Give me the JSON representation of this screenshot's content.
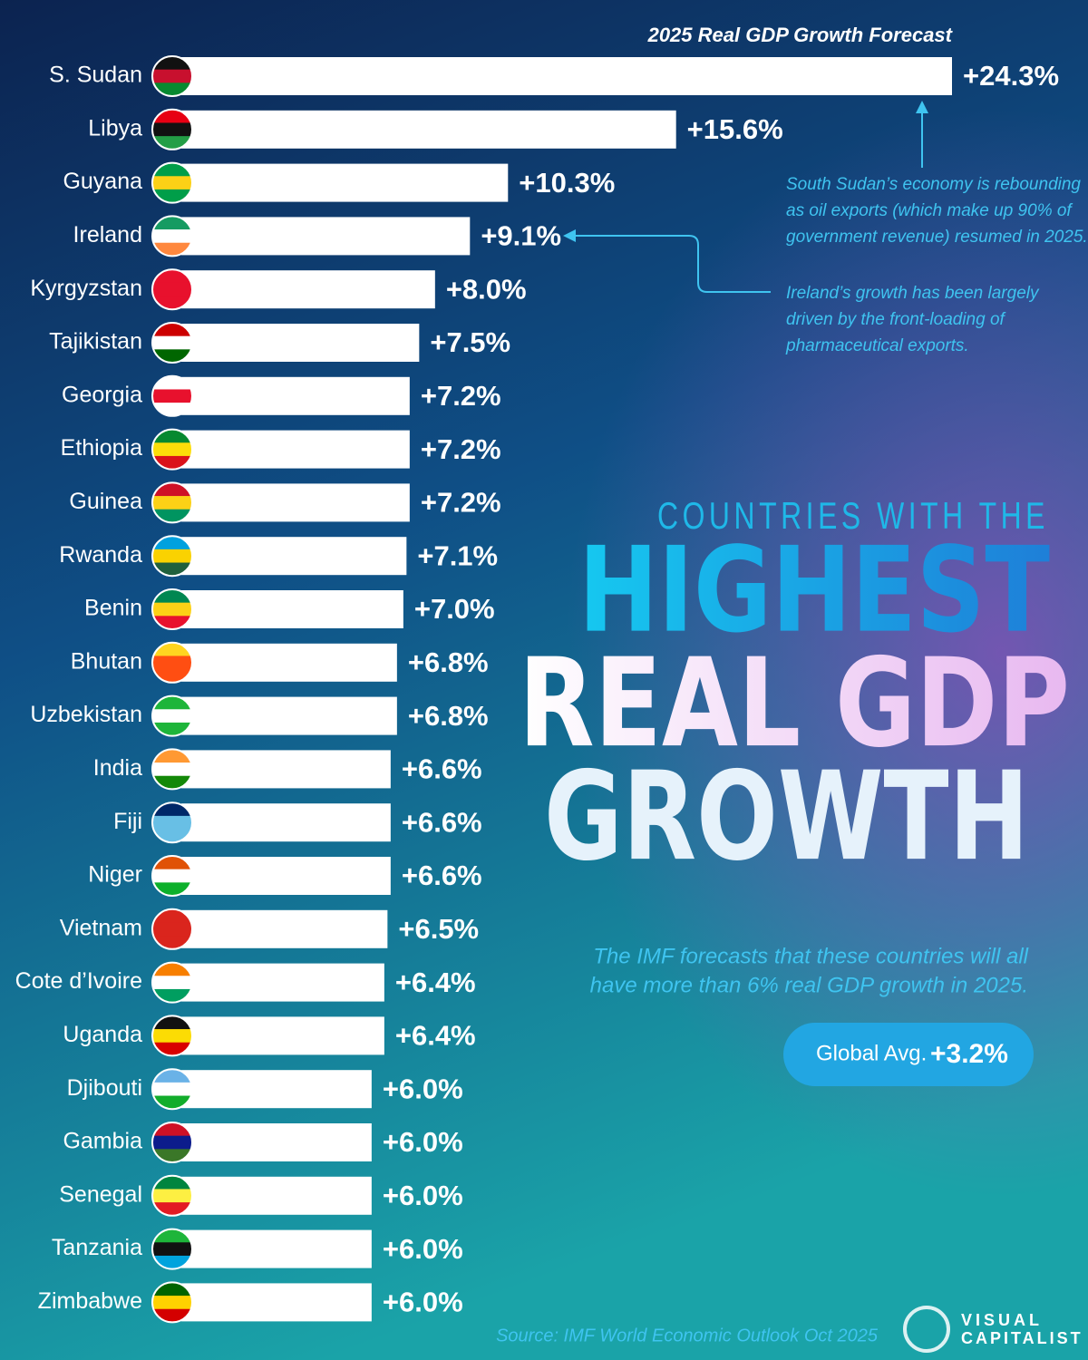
{
  "chart_data": {
    "type": "bar",
    "orientation": "horizontal",
    "subtitle": "2025 Real GDP Growth Forecast",
    "title": [
      "COUNTRIES WITH THE",
      "HIGHEST",
      "REAL GDP",
      "GROWTH"
    ],
    "categories": [
      "S. Sudan",
      "Libya",
      "Guyana",
      "Ireland",
      "Kyrgyzstan",
      "Tajikistan",
      "Georgia",
      "Ethiopia",
      "Guinea",
      "Rwanda",
      "Benin",
      "Bhutan",
      "Uzbekistan",
      "India",
      "Fiji",
      "Niger",
      "Vietnam",
      "Cote d’Ivoire",
      "Uganda",
      "Djibouti",
      "Gambia",
      "Senegal",
      "Tanzania",
      "Zimbabwe"
    ],
    "values": [
      24.3,
      15.6,
      10.3,
      9.1,
      8.0,
      7.5,
      7.2,
      7.2,
      7.2,
      7.1,
      7.0,
      6.8,
      6.8,
      6.6,
      6.6,
      6.6,
      6.5,
      6.4,
      6.4,
      6.0,
      6.0,
      6.0,
      6.0,
      6.0
    ],
    "value_labels": [
      "+24.3%",
      "+15.6%",
      "+10.3%",
      "+9.1%",
      "+8.0%",
      "+7.5%",
      "+7.2%",
      "+7.2%",
      "+7.2%",
      "+7.1%",
      "+7.0%",
      "+6.8%",
      "+6.8%",
      "+6.6%",
      "+6.6%",
      "+6.6%",
      "+6.5%",
      "+6.4%",
      "+6.4%",
      "+6.0%",
      "+6.0%",
      "+6.0%",
      "+6.0%",
      "+6.0%"
    ],
    "color": "#ffffff",
    "annotations": [
      [
        "South Sudan’s economy is rebounding",
        "as oil exports (which make up 90% of",
        "government revenue) resumed in 2025."
      ],
      [
        "Ireland’s growth has been largely",
        "driven by the front-loading of",
        "pharmaceutical exports."
      ]
    ],
    "note": [
      "The IMF forecasts that these countries will all",
      "have more than 6% real GDP growth in 2025."
    ],
    "global_avg": {
      "label": "Global Avg.",
      "value": "+3.2%"
    },
    "source": "Source: IMF World Economic Outlook Oct 2025",
    "brand": [
      "VISUAL",
      "CAPITALIST"
    ]
  }
}
